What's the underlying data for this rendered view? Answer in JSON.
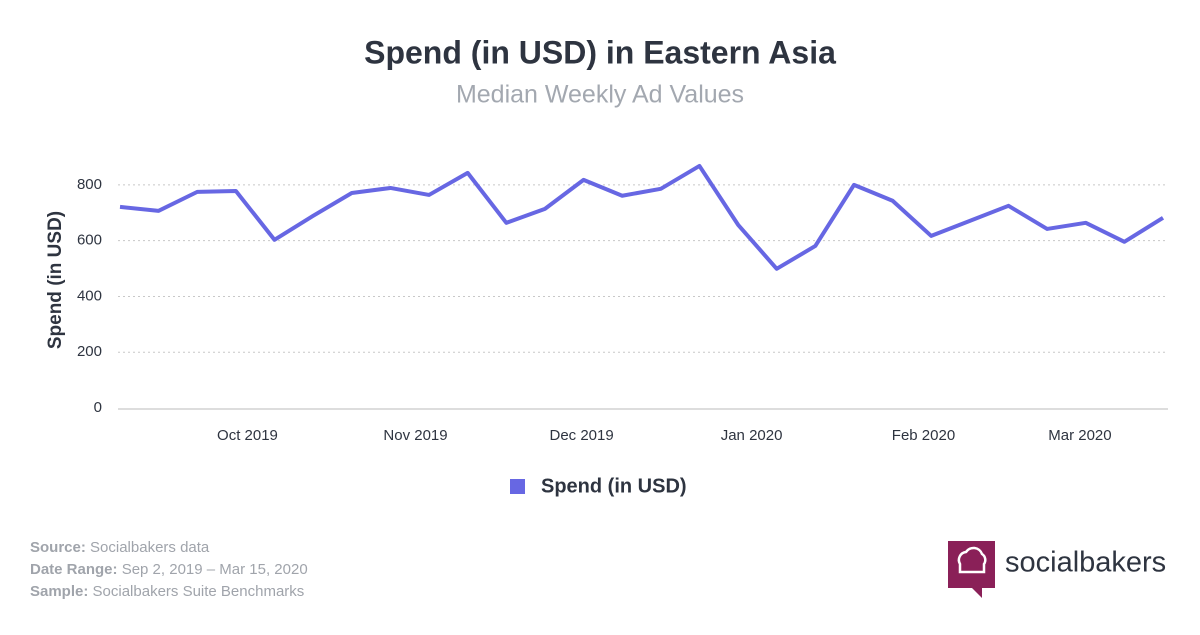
{
  "chart_data": {
    "type": "line",
    "title": "Spend (in USD) in Eastern Asia",
    "subtitle": "Median Weekly Ad Values",
    "y_label": "Spend (in USD)",
    "x": [
      0,
      1,
      2,
      3,
      4,
      5,
      6,
      7,
      8,
      9,
      10,
      11,
      12,
      13,
      14,
      15,
      16,
      17,
      18,
      19,
      20,
      21,
      22,
      23,
      24,
      25,
      26,
      27
    ],
    "xlim": [
      0,
      27
    ],
    "xticks": [
      {
        "value": 3.3,
        "label": "Oct 2019"
      },
      {
        "value": 7.65,
        "label": "Nov 2019"
      },
      {
        "value": 11.95,
        "label": "Dec 2019"
      },
      {
        "value": 16.35,
        "label": "Jan 2020"
      },
      {
        "value": 20.8,
        "label": "Feb 2020"
      },
      {
        "value": 24.85,
        "label": "Mar 2020"
      }
    ],
    "ylim": [
      0,
      900
    ],
    "yticks": [
      0,
      200,
      400,
      600,
      800
    ],
    "grid": true,
    "legend": "bottom",
    "series": [
      {
        "name": "Spend (in USD)",
        "color": "#6767e3",
        "values": [
          721,
          707,
          775,
          778,
          603,
          689,
          771,
          789,
          764,
          843,
          664,
          714,
          818,
          761,
          786,
          868,
          657,
          499,
          581,
          800,
          743,
          617,
          671,
          725,
          642,
          664,
          596,
          682
        ]
      }
    ]
  },
  "footer": {
    "source_label": "Source:",
    "source": "Socialbakers data",
    "range_label": "Date Range:",
    "range": "Sep 2, 2019 – Mar 15, 2020",
    "sample_label": "Sample:",
    "sample": "Socialbakers Suite Benchmarks",
    "brand": "socialbakers"
  }
}
